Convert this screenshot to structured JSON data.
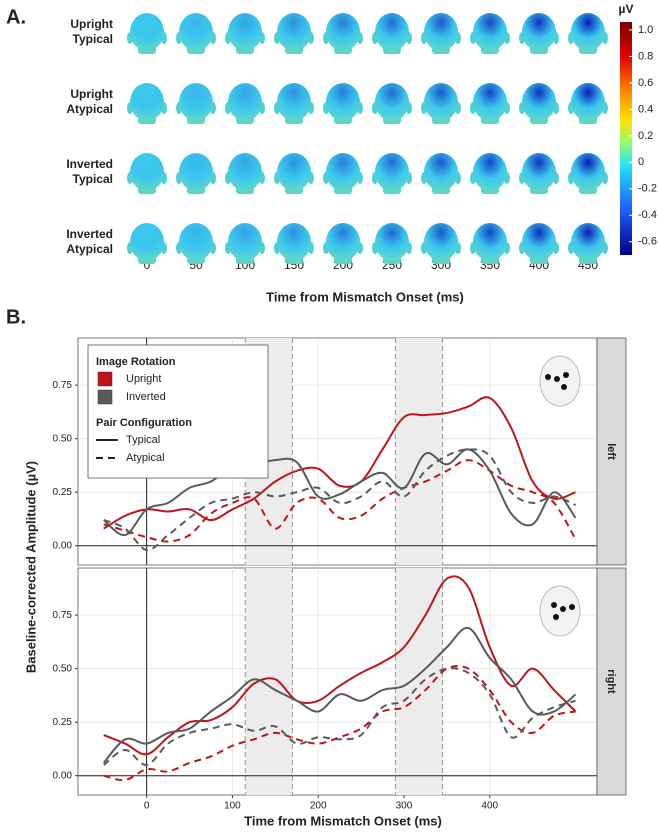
{
  "panel_a": {
    "label": "A.",
    "conditions": [
      [
        "Upright",
        "Typical"
      ],
      [
        "Upright",
        "Atypical"
      ],
      [
        "Inverted",
        "Typical"
      ],
      [
        "Inverted",
        "Atypical"
      ]
    ],
    "times": [
      0,
      50,
      100,
      150,
      200,
      250,
      300,
      350,
      400,
      450
    ],
    "x_label": "Time from Mismatch Onset (ms)",
    "colorbar": {
      "unit": "µV",
      "lim": [
        -0.7,
        1.06
      ],
      "ticks": [
        {
          "value": 1.0,
          "label": "1.0"
        },
        0.8,
        0.6,
        0.4,
        0.2,
        0,
        -0.2,
        -0.4,
        -0.6
      ]
    }
  },
  "chart_data": {
    "type": "line",
    "label": "B.",
    "x_label": "Time from Mismatch Onset (ms)",
    "y_label": "Baseline-corrected Amplitude (µV)",
    "x": [
      -50,
      -25,
      0,
      25,
      50,
      75,
      100,
      125,
      150,
      175,
      200,
      225,
      250,
      275,
      300,
      325,
      350,
      375,
      400,
      425,
      450,
      475,
      500
    ],
    "xlim": [
      -80,
      525
    ],
    "xticks": [
      0,
      100,
      200,
      300,
      400
    ],
    "ylim": [
      -0.09,
      0.97
    ],
    "yticks": [
      {
        "value": 0,
        "label": "0.00"
      },
      {
        "value": 0.25,
        "label": "0.25"
      },
      {
        "value": 0.5,
        "label": "0.50"
      },
      {
        "value": 0.75,
        "label": "0.75"
      }
    ],
    "grid": true,
    "windows": [
      [
        115,
        170
      ],
      [
        290,
        345
      ]
    ],
    "legend": {
      "position": "top-left",
      "groups": [
        {
          "title": "Image Rotation",
          "entries": [
            {
              "name": "Upright",
              "color": "#c0141c"
            },
            {
              "name": "Inverted",
              "color": "#5a5a5a"
            }
          ]
        },
        {
          "title": "Pair Configuration",
          "entries": [
            {
              "name": "Typical",
              "dash": "solid"
            },
            {
              "name": "Atypical",
              "dash": "dashed"
            }
          ]
        }
      ]
    },
    "facets": [
      {
        "name": "left",
        "series": [
          {
            "rotation": "Upright",
            "configuration": "Typical",
            "values": [
              0.08,
              0.14,
              0.17,
              0.16,
              0.17,
              0.12,
              0.17,
              0.22,
              0.3,
              0.35,
              0.36,
              0.28,
              0.3,
              0.45,
              0.6,
              0.61,
              0.62,
              0.65,
              0.69,
              0.55,
              0.3,
              0.22,
              0.25
            ]
          },
          {
            "rotation": "Upright",
            "configuration": "Atypical",
            "values": [
              0.1,
              0.07,
              0.04,
              0.02,
              0.05,
              0.15,
              0.2,
              0.22,
              0.08,
              0.2,
              0.22,
              0.13,
              0.14,
              0.22,
              0.27,
              0.3,
              0.35,
              0.4,
              0.35,
              0.28,
              0.25,
              0.2,
              0.03
            ]
          },
          {
            "rotation": "Inverted",
            "configuration": "Typical",
            "values": [
              0.12,
              0.05,
              0.17,
              0.2,
              0.27,
              0.3,
              0.37,
              0.38,
              0.4,
              0.39,
              0.23,
              0.24,
              0.3,
              0.34,
              0.27,
              0.43,
              0.38,
              0.45,
              0.35,
              0.15,
              0.1,
              0.25,
              0.13
            ]
          },
          {
            "rotation": "Inverted",
            "configuration": "Atypical",
            "values": [
              0.12,
              0.08,
              -0.02,
              0.05,
              0.13,
              0.2,
              0.22,
              0.25,
              0.23,
              0.25,
              0.27,
              0.2,
              0.23,
              0.3,
              0.23,
              0.35,
              0.42,
              0.45,
              0.42,
              0.25,
              0.2,
              0.23,
              0.19
            ]
          }
        ]
      },
      {
        "name": "right",
        "series": [
          {
            "rotation": "Upright",
            "configuration": "Typical",
            "values": [
              0.19,
              0.15,
              0.1,
              0.18,
              0.25,
              0.26,
              0.32,
              0.43,
              0.45,
              0.35,
              0.35,
              0.42,
              0.48,
              0.53,
              0.6,
              0.75,
              0.92,
              0.88,
              0.6,
              0.42,
              0.5,
              0.4,
              0.3
            ]
          },
          {
            "rotation": "Upright",
            "configuration": "Atypical",
            "values": [
              0.0,
              -0.02,
              0.03,
              0.02,
              0.06,
              0.09,
              0.14,
              0.17,
              0.2,
              0.17,
              0.15,
              0.18,
              0.22,
              0.3,
              0.32,
              0.4,
              0.5,
              0.5,
              0.4,
              0.25,
              0.2,
              0.28,
              0.3
            ]
          },
          {
            "rotation": "Inverted",
            "configuration": "Typical",
            "values": [
              0.06,
              0.17,
              0.15,
              0.2,
              0.22,
              0.3,
              0.37,
              0.45,
              0.4,
              0.35,
              0.3,
              0.38,
              0.35,
              0.4,
              0.42,
              0.5,
              0.6,
              0.69,
              0.55,
              0.45,
              0.3,
              0.3,
              0.38
            ]
          },
          {
            "rotation": "Inverted",
            "configuration": "Atypical",
            "values": [
              0.05,
              0.12,
              0.05,
              0.15,
              0.2,
              0.22,
              0.24,
              0.21,
              0.23,
              0.15,
              0.18,
              0.17,
              0.19,
              0.32,
              0.35,
              0.45,
              0.5,
              0.48,
              0.38,
              0.18,
              0.27,
              0.32,
              0.35
            ]
          }
        ]
      }
    ]
  }
}
